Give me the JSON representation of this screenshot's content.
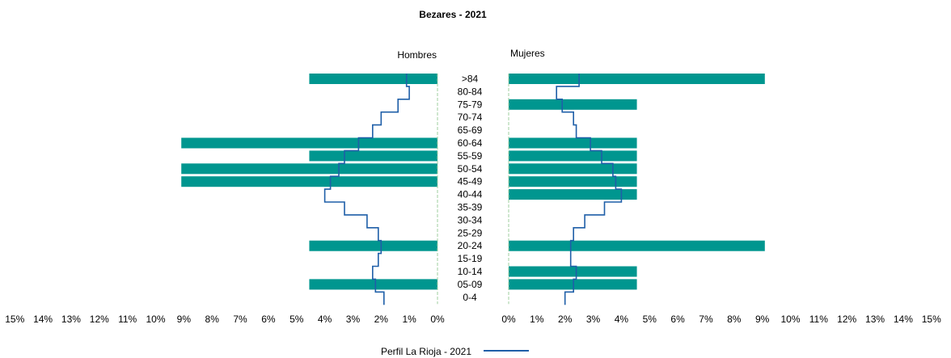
{
  "chart_data": {
    "type": "bar",
    "title": "Bezares - 2021",
    "left_label": "Hombres",
    "right_label": "Mujeres",
    "categories": [
      ">84",
      "80-84",
      "75-79",
      "70-74",
      "65-69",
      "60-64",
      "55-59",
      "50-54",
      "45-49",
      "40-44",
      "35-39",
      "30-34",
      "25-29",
      "20-24",
      "15-19",
      "10-14",
      "05-09",
      "0-4"
    ],
    "series": [
      {
        "name": "Hombres",
        "values": [
          4.55,
          0,
          0,
          0,
          0,
          9.09,
          4.55,
          9.09,
          9.09,
          0,
          0,
          0,
          0,
          4.55,
          0,
          0,
          4.55,
          0
        ]
      },
      {
        "name": "Mujeres",
        "values": [
          9.09,
          0,
          4.55,
          0,
          0,
          4.55,
          4.55,
          4.55,
          4.55,
          4.55,
          0,
          0,
          0,
          9.09,
          0,
          4.55,
          4.55,
          0
        ]
      }
    ],
    "profile": {
      "name": "Perfil La Rioja - 2021",
      "hombres": [
        1.1,
        1.0,
        1.4,
        2.0,
        2.3,
        2.8,
        3.3,
        3.5,
        3.8,
        4.0,
        3.3,
        2.5,
        2.1,
        2.0,
        2.1,
        2.3,
        2.2,
        1.9
      ],
      "mujeres": [
        2.5,
        1.7,
        1.9,
        2.3,
        2.4,
        2.9,
        3.3,
        3.7,
        3.8,
        4.0,
        3.4,
        2.7,
        2.3,
        2.2,
        2.2,
        2.4,
        2.3,
        2.0
      ]
    },
    "xlim": [
      0,
      15
    ],
    "x_ticks": [
      15,
      14,
      13,
      12,
      11,
      10,
      9,
      8,
      7,
      6,
      5,
      4,
      3,
      2,
      1,
      0
    ],
    "x_tick_labels_left": [
      "15%",
      "14%",
      "13%",
      "12%",
      "11%",
      "10%",
      "9%",
      "8%",
      "7%",
      "6%",
      "5%",
      "4%",
      "3%",
      "2%",
      "1%",
      "0%"
    ],
    "x_tick_labels_right": [
      "0%",
      "1%",
      "2%",
      "3%",
      "4%",
      "5%",
      "6%",
      "7%",
      "8%",
      "9%",
      "10%",
      "11%",
      "12%",
      "13%",
      "14%",
      "15%"
    ],
    "colors": {
      "bar": "#00968F",
      "profile": "#1F5FA8",
      "axis": "#9FCF9F"
    },
    "legend": "bottom-center",
    "grid": false
  }
}
